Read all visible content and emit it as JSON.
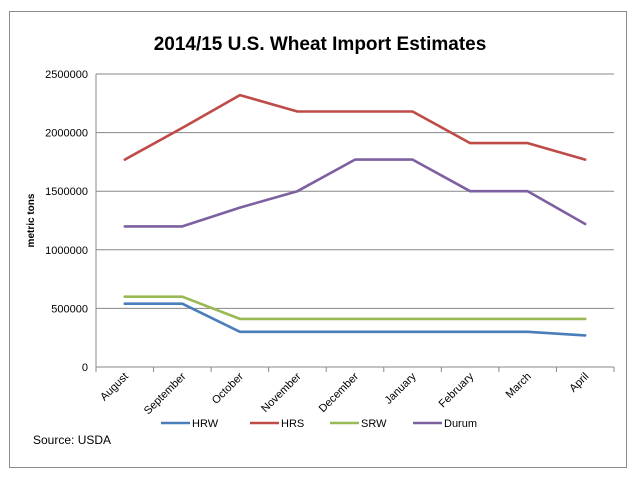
{
  "chart_data": {
    "type": "line",
    "title": "2014/15 U.S. Wheat Import Estimates",
    "xlabel": "",
    "ylabel": "metric tons",
    "ylim": [
      0,
      2500000
    ],
    "yticks": [
      "2500000",
      "2000000",
      "1500000",
      "1000000",
      "500000",
      "0"
    ],
    "categories": [
      "August",
      "September",
      "October",
      "November",
      "December",
      "January",
      "February",
      "March",
      "April"
    ],
    "grid": true,
    "legend_position": "bottom",
    "series": [
      {
        "name": "HRW",
        "color": "#4a7ebb",
        "values": [
          540000,
          540000,
          300000,
          300000,
          300000,
          300000,
          300000,
          300000,
          270000
        ]
      },
      {
        "name": "HRS",
        "color": "#be4b48",
        "values": [
          1770000,
          2040000,
          2320000,
          2180000,
          2180000,
          2180000,
          1910000,
          1910000,
          1770000
        ]
      },
      {
        "name": "SRW",
        "color": "#98b954",
        "values": [
          600000,
          600000,
          410000,
          410000,
          410000,
          410000,
          410000,
          410000,
          410000
        ]
      },
      {
        "name": "Durum",
        "color": "#7d60a0",
        "values": [
          1200000,
          1200000,
          1360000,
          1500000,
          1770000,
          1770000,
          1500000,
          1500000,
          1220000
        ]
      }
    ]
  },
  "source": "Source: USDA"
}
